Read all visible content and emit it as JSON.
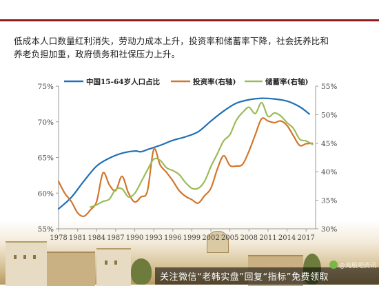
{
  "intro": {
    "line1": "低成本人口数量红利消失，劳动力成本上升，投资率和储蓄率下降，社会抚养比和",
    "line2": "养老负担加重，政府债务和社保压力上升。"
  },
  "chart_data": {
    "type": "line",
    "title": "",
    "xlabel": "",
    "ylabel_left": "",
    "ylabel_right": "",
    "x_ticks": [
      "1978",
      "1981",
      "1984",
      "1987",
      "1990",
      "1993",
      "1996",
      "1999",
      "2002",
      "2005",
      "2008",
      "2011",
      "2014",
      "2017"
    ],
    "xlim": [
      1978,
      2018.5
    ],
    "ylim_left": [
      55,
      75
    ],
    "ylim_right": [
      30,
      55
    ],
    "yticks_left": [
      "55%",
      "60%",
      "65%",
      "70%",
      "75%"
    ],
    "yticks_left_values": [
      55,
      60,
      65,
      70,
      75
    ],
    "yticks_right": [
      "30%",
      "35%",
      "40%",
      "45%",
      "50%",
      "55%"
    ],
    "yticks_right_values": [
      30,
      35,
      40,
      45,
      50,
      55
    ],
    "grid": false,
    "legend_position": "top",
    "series": [
      {
        "name": "中国15-64岁人口占比",
        "axis": "left",
        "color": "#1f6fb5",
        "x": [
          1978,
          1980,
          1982,
          1984,
          1986,
          1988,
          1990,
          1991,
          1992,
          1994,
          1996,
          1998,
          2000,
          2002,
          2004,
          2006,
          2008,
          2010,
          2012,
          2014,
          2016,
          2017.5
        ],
        "y": [
          57.8,
          59.4,
          61.7,
          63.8,
          64.9,
          65.6,
          65.9,
          65.8,
          66.1,
          66.7,
          67.4,
          67.9,
          68.6,
          70.1,
          71.5,
          72.6,
          73.1,
          73.3,
          73.2,
          72.9,
          72.1,
          71.1
        ]
      },
      {
        "name": "投资率(右轴)",
        "axis": "right",
        "color": "#d2752a",
        "x": [
          1978,
          1979,
          1980,
          1981,
          1982,
          1983,
          1984,
          1985,
          1986,
          1987,
          1988,
          1989,
          1990,
          1991,
          1992,
          1993,
          1994,
          1995,
          1996,
          1997,
          1998,
          1999,
          2000,
          2001,
          2002,
          2003,
          2004,
          2005,
          2006,
          2007,
          2008,
          2009,
          2010,
          2011,
          2012,
          2013,
          2014,
          2015,
          2016,
          2017,
          2018
        ],
        "y": [
          38.3,
          36.2,
          34.8,
          32.8,
          32.2,
          33.3,
          34.8,
          39.8,
          37.7,
          36.7,
          39.2,
          36.3,
          34.7,
          35.6,
          36.6,
          43.9,
          41.2,
          39.9,
          38.4,
          36.7,
          35.7,
          35.1,
          34.5,
          35.8,
          37.1,
          40.4,
          42.8,
          41.1,
          41.0,
          41.3,
          43.6,
          46.5,
          49.3,
          48.9,
          48.6,
          48.9,
          48.1,
          46.3,
          44.6,
          44.9,
          45.0
        ]
      },
      {
        "name": "储蓄率(右轴)",
        "axis": "right",
        "color": "#9bbb59",
        "x": [
          1983,
          1984,
          1985,
          1986,
          1987,
          1988,
          1989,
          1990,
          1991,
          1992,
          1993,
          1994,
          1995,
          1996,
          1997,
          1998,
          1999,
          2000,
          2001,
          2002,
          2003,
          2004,
          2005,
          2006,
          2007,
          2008,
          2009,
          2010,
          2011,
          2012,
          2013,
          2014,
          2015,
          2016,
          2017,
          2018
        ],
        "y": [
          33.8,
          34.2,
          34.8,
          35.2,
          36.9,
          37.0,
          35.6,
          36.2,
          38.2,
          40.3,
          42.2,
          42.0,
          40.7,
          40.2,
          39.5,
          38.1,
          37.1,
          37.1,
          38.3,
          40.9,
          43.1,
          45.4,
          46.5,
          49.0,
          50.4,
          51.3,
          50.2,
          52.1,
          49.7,
          50.3,
          49.8,
          48.6,
          47.6,
          45.7,
          45.4,
          44.8
        ]
      }
    ]
  },
  "footer": {
    "caption": "关注微信“老韩实盘”回复“指标”免费领取",
    "caption_sub": "@淘股吧资讯"
  }
}
